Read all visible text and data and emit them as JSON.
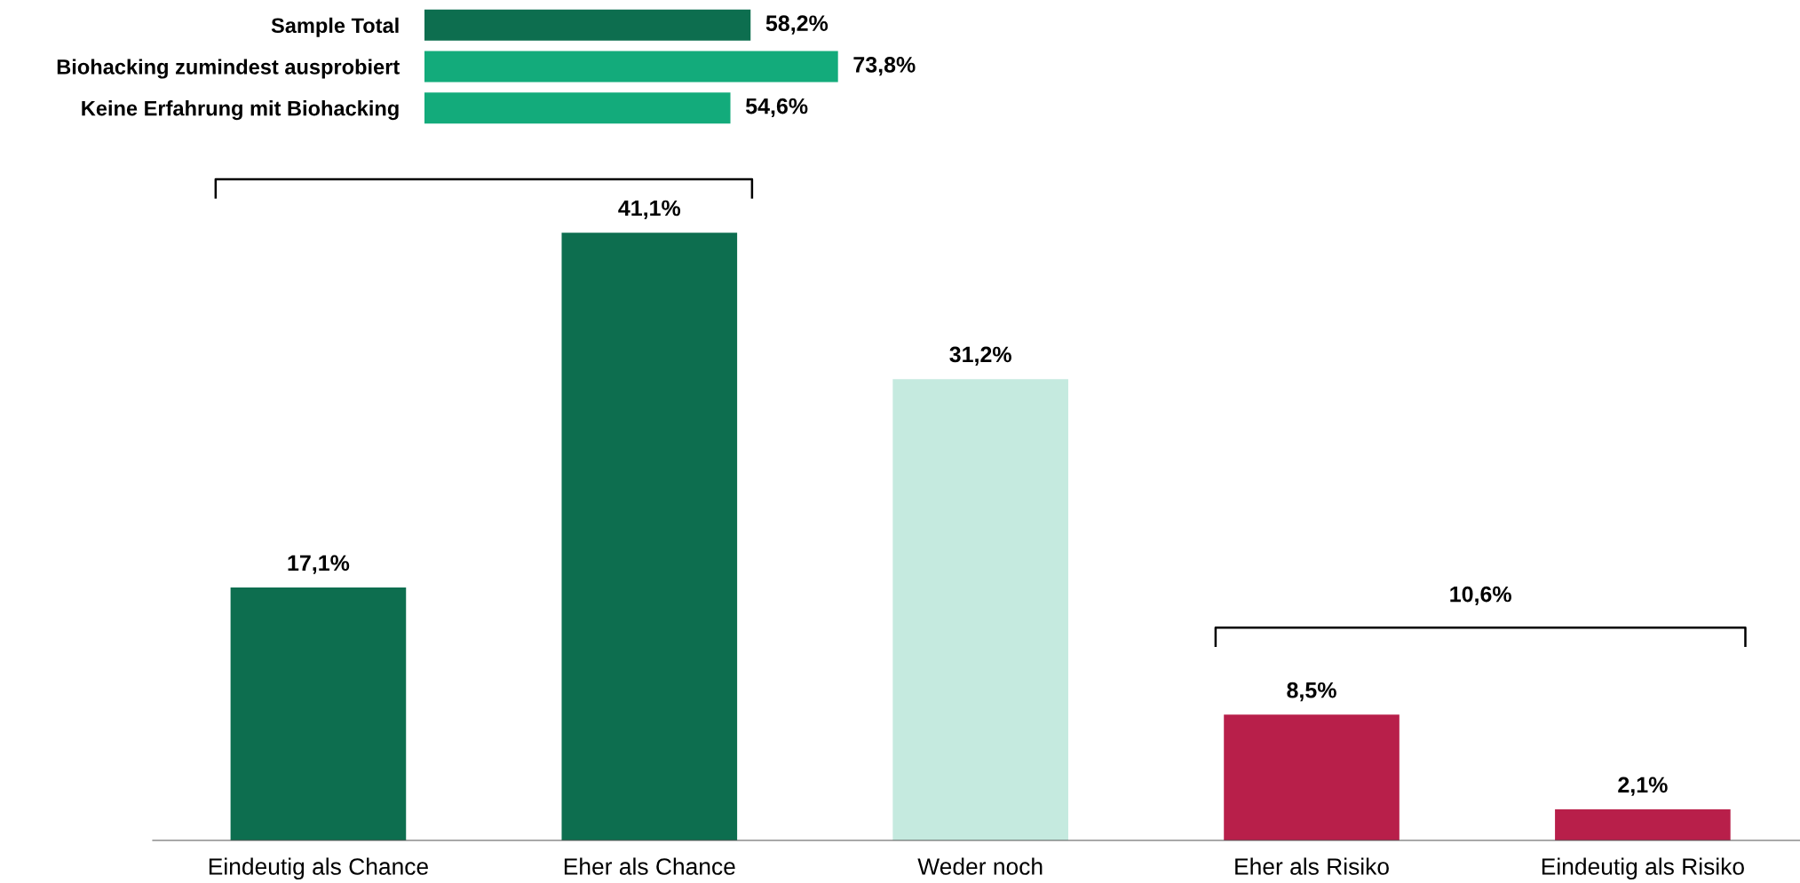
{
  "chart_data": [
    {
      "type": "bar",
      "orientation": "horizontal",
      "categories": [
        "Sample Total",
        "Biohacking zumindest ausprobiert",
        "Keine Erfahrung mit Biohacking"
      ],
      "values": [
        58.2,
        73.8,
        54.6
      ],
      "colors": [
        "#0d6e4f",
        "#13ab7b",
        "#13ab7b"
      ],
      "value_labels": [
        "58,2%",
        "73,8%",
        "54,6%"
      ],
      "tick_labels": "y",
      "grid": false,
      "legend": false
    },
    {
      "type": "bar",
      "categories": [
        "Eindeutig als Chance",
        "Eher als Chance",
        "Weder noch",
        "Eher als Risiko",
        "Eindeutig als Risiko"
      ],
      "values": [
        17.1,
        41.1,
        31.2,
        8.5,
        2.1
      ],
      "colors": [
        "#0d6e4f",
        "#0d6e4f",
        "#c5eadf",
        "#b81f4a",
        "#b81f4a"
      ],
      "value_labels": [
        "17,1%",
        "41,1%",
        "31,2%",
        "8,5%",
        "2,1%"
      ],
      "annotations": [
        "10,6%"
      ],
      "tick_labels": "x",
      "grid": false,
      "legend": false
    }
  ]
}
